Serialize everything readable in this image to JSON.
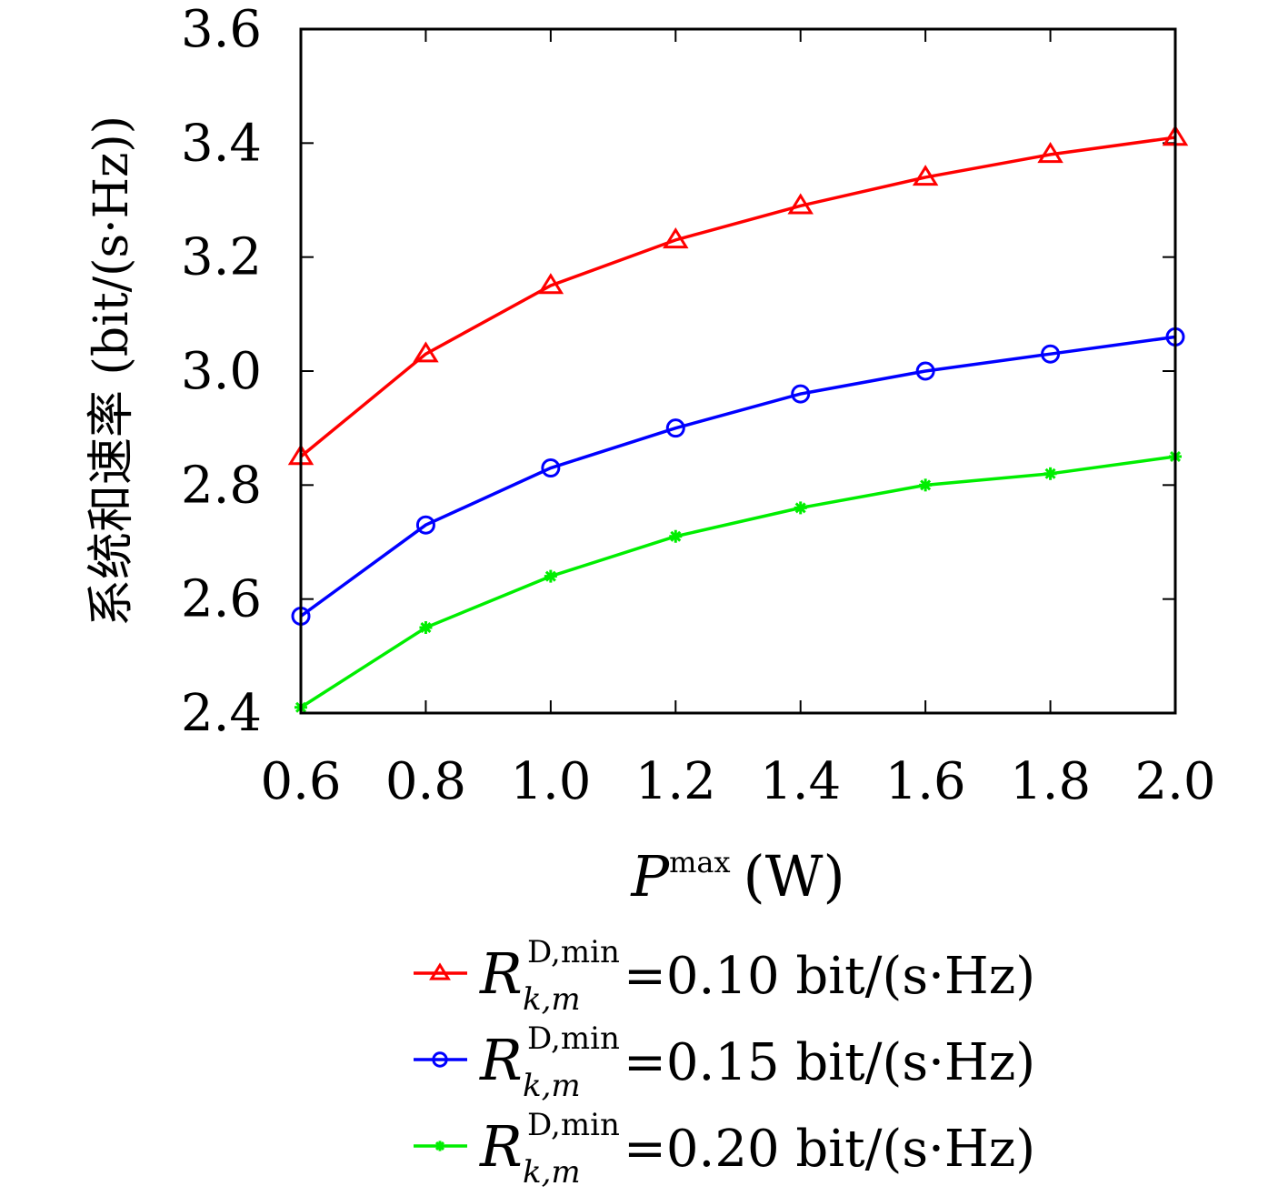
{
  "chart_data": {
    "type": "line",
    "x": [
      0.6,
      0.8,
      1.0,
      1.2,
      1.4,
      1.6,
      1.8,
      2.0
    ],
    "x_ticks": [
      "0.6",
      "0.8",
      "1.0",
      "1.2",
      "1.4",
      "1.6",
      "1.8",
      "2.0"
    ],
    "y_ticks": [
      "2.4",
      "2.6",
      "2.8",
      "3.0",
      "3.2",
      "3.4",
      "3.6"
    ],
    "xlim": [
      0.6,
      2.0
    ],
    "ylim": [
      2.4,
      3.6
    ],
    "xlabel": {
      "symbol": "P",
      "superscript": "max",
      "unit": "(W)"
    },
    "ylabel": "系统和速率 (bit/(s·Hz))",
    "grid": false,
    "legend_position": "bottom-outside",
    "series": [
      {
        "name": {
          "symbol": "R",
          "sup": "D,min",
          "sub": "k,m",
          "value": "=0.10 bit/(s·Hz)"
        },
        "color": "#ff0000",
        "marker": "triangle",
        "values": [
          2.85,
          3.03,
          3.15,
          3.23,
          3.29,
          3.34,
          3.38,
          3.41
        ]
      },
      {
        "name": {
          "symbol": "R",
          "sup": "D,min",
          "sub": "k,m",
          "value": "=0.15 bit/(s·Hz)"
        },
        "color": "#0000ff",
        "marker": "circle",
        "values": [
          2.57,
          2.73,
          2.83,
          2.9,
          2.96,
          3.0,
          3.03,
          3.06
        ]
      },
      {
        "name": {
          "symbol": "R",
          "sup": "D,min",
          "sub": "k,m",
          "value": "=0.20 bit/(s·Hz)"
        },
        "color": "#00ee00",
        "marker": "star",
        "values": [
          2.41,
          2.55,
          2.64,
          2.71,
          2.76,
          2.8,
          2.82,
          2.85
        ]
      }
    ]
  }
}
